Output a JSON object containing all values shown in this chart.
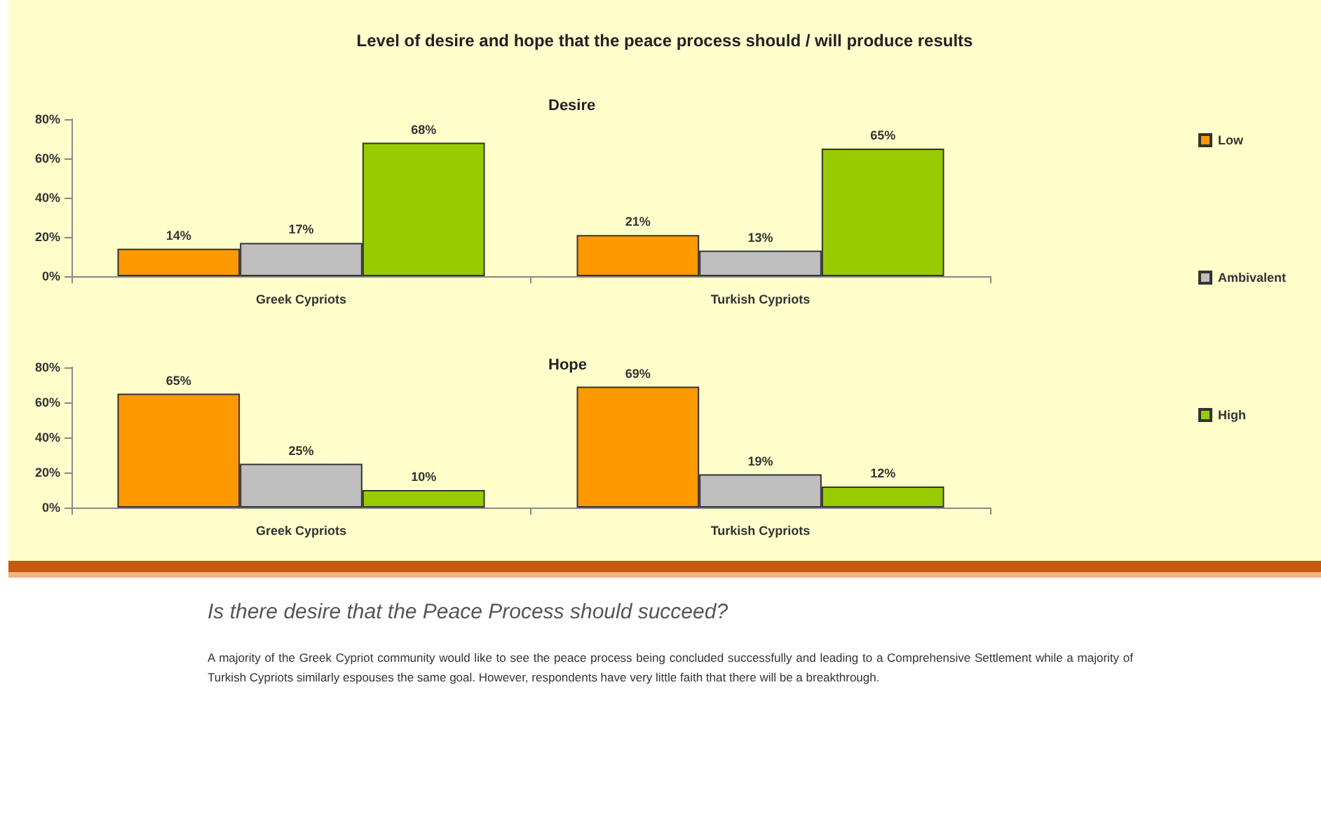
{
  "chart_data": [
    {
      "type": "bar",
      "title": "Level of desire and hope that the peace process should / will produce results",
      "subtitle": "Desire",
      "categories": [
        "Greek Cypriots",
        "Turkish Cypriots"
      ],
      "series": [
        {
          "name": "Low",
          "color": "#ff9900",
          "values": [
            14,
            21
          ],
          "value_labels": [
            "14%",
            "21%"
          ]
        },
        {
          "name": "Ambivalent",
          "color": "#bfbfbf",
          "values": [
            17,
            13
          ],
          "value_labels": [
            "17%",
            "13%"
          ]
        },
        {
          "name": "High",
          "color": "#99cc00",
          "values": [
            68,
            65
          ],
          "value_labels": [
            "68%",
            "65%"
          ]
        }
      ],
      "ylim": [
        0,
        80
      ],
      "yticks": [
        {
          "value": 0,
          "label": "0%"
        },
        {
          "value": 20,
          "label": "20%"
        },
        {
          "value": 40,
          "label": "40%"
        },
        {
          "value": 60,
          "label": "60%"
        },
        {
          "value": 80,
          "label": "80%"
        }
      ],
      "grid": false,
      "legend": "right"
    },
    {
      "type": "bar",
      "title": "Hope",
      "categories": [
        "Greek Cypriots",
        "Turkish Cypriots"
      ],
      "series": [
        {
          "color": "#ff9900",
          "values": [
            65,
            69
          ],
          "value_labels": [
            "65%",
            "69%"
          ]
        },
        {
          "color": "#bfbfbf",
          "values": [
            25,
            19
          ],
          "value_labels": [
            "25%",
            "19%"
          ]
        },
        {
          "color": "#99cc00",
          "values": [
            10,
            12
          ],
          "value_labels": [
            "10%",
            "12%"
          ]
        }
      ],
      "ylim": [
        0,
        80
      ],
      "yticks": [
        {
          "value": 0,
          "label": "0%"
        },
        {
          "value": 20,
          "label": "20%"
        },
        {
          "value": 40,
          "label": "40%"
        },
        {
          "value": 60,
          "label": "60%"
        },
        {
          "value": 80,
          "label": "80%"
        }
      ],
      "grid": false,
      "legend": false,
      "annotations": [
        "Is there desire that the Peace Process should succeed?",
        "A majority of the Greek Cypriot community would like to see the peace process being concluded successfully and leading to a Comprehensive Settlement  while a majority of Turkish Cypriots similarly espouses the same goal.  However, respondents have very little faith that there will be a breakthrough."
      ]
    }
  ]
}
